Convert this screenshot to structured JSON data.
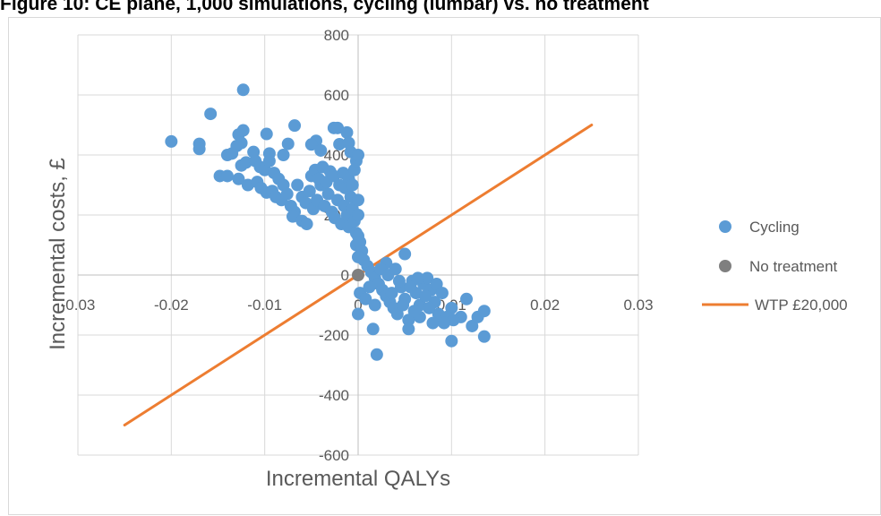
{
  "figure_title": "Figure 10: CE plane, 1,000 simulations, cycling (lumbar) vs.  no treatment",
  "chart_data": {
    "type": "scatter",
    "title": "",
    "xlabel": "Incremental QALYs",
    "ylabel": "Incremental costs, £",
    "xlim": [
      -0.03,
      0.03
    ],
    "ylim": [
      -600,
      800
    ],
    "x_ticks": [
      "-0.03",
      "-0.02",
      "-0.01",
      "0",
      "0.01",
      "0.02",
      "0.03"
    ],
    "y_ticks": [
      "-600",
      "-400",
      "-200",
      "0",
      "200",
      "400",
      "600",
      "800"
    ],
    "grid": "vertical and horizontal major gridlines",
    "legend_position": "right",
    "colors": {
      "cycling": "#5b9bd5",
      "no_treatment": "#7f7f7f",
      "wtp": "#ed7d31",
      "grid": "#d9d9d9"
    },
    "series": [
      {
        "name": "Cycling",
        "type": "scatter",
        "points": [
          [
            -0.0123,
            617
          ],
          [
            -0.0158,
            537
          ],
          [
            -0.0068,
            498
          ],
          [
            -0.0026,
            490
          ],
          [
            -0.0022,
            490
          ],
          [
            -0.0012,
            475
          ],
          [
            -0.0123,
            482
          ],
          [
            -0.0128,
            468
          ],
          [
            -0.0098,
            470
          ],
          [
            -0.02,
            445
          ],
          [
            -0.017,
            437
          ],
          [
            -0.017,
            420
          ],
          [
            -0.0125,
            440
          ],
          [
            -0.013,
            430
          ],
          [
            -0.0075,
            437
          ],
          [
            -0.0045,
            447
          ],
          [
            -0.005,
            435
          ],
          [
            -0.002,
            436
          ],
          [
            -0.001,
            440
          ],
          [
            -0.0008,
            410
          ],
          [
            -0.004,
            415
          ],
          [
            -0.014,
            400
          ],
          [
            -0.0135,
            405
          ],
          [
            -0.0112,
            410
          ],
          [
            -0.0095,
            405
          ],
          [
            -0.008,
            400
          ],
          [
            -0.0148,
            330
          ],
          [
            -0.014,
            330
          ],
          [
            -0.0125,
            365
          ],
          [
            -0.012,
            375
          ],
          [
            -0.0128,
            320
          ],
          [
            -0.0118,
            300
          ],
          [
            -0.011,
            380
          ],
          [
            -0.0105,
            360
          ],
          [
            -0.01,
            350
          ],
          [
            -0.0095,
            380
          ],
          [
            -0.009,
            340
          ],
          [
            -0.0085,
            320
          ],
          [
            -0.008,
            300
          ],
          [
            -0.0108,
            310
          ],
          [
            -0.0104,
            290
          ],
          [
            -0.0098,
            275
          ],
          [
            -0.0092,
            280
          ],
          [
            -0.0088,
            260
          ],
          [
            -0.0082,
            250
          ],
          [
            -0.0076,
            270
          ],
          [
            -0.0072,
            230
          ],
          [
            -0.0068,
            210
          ],
          [
            -0.0065,
            300
          ],
          [
            -0.006,
            260
          ],
          [
            -0.0056,
            240
          ],
          [
            -0.0052,
            280
          ],
          [
            -0.0048,
            220
          ],
          [
            -0.0044,
            250
          ],
          [
            -0.004,
            300
          ],
          [
            -0.0036,
            230
          ],
          [
            -0.0032,
            270
          ],
          [
            -0.0028,
            210
          ],
          [
            -0.0025,
            190
          ],
          [
            -0.0022,
            250
          ],
          [
            -0.0018,
            170
          ],
          [
            -0.0015,
            230
          ],
          [
            -0.0012,
            200
          ],
          [
            -0.001,
            160
          ],
          [
            -0.0008,
            260
          ],
          [
            -0.0006,
            220
          ],
          [
            -0.0004,
            180
          ],
          [
            -0.0002,
            140
          ],
          [
            0.0,
            250
          ],
          [
            0.0,
            200
          ],
          [
            -0.007,
            195
          ],
          [
            -0.006,
            180
          ],
          [
            -0.0055,
            170
          ],
          [
            -0.005,
            330
          ],
          [
            -0.0046,
            350
          ],
          [
            -0.0042,
            320
          ],
          [
            -0.0038,
            360
          ],
          [
            -0.0034,
            310
          ],
          [
            -0.003,
            345
          ],
          [
            -0.0026,
            330
          ],
          [
            -0.002,
            300
          ],
          [
            -0.0016,
            340
          ],
          [
            -0.0014,
            290
          ],
          [
            -0.001,
            320
          ],
          [
            -0.0006,
            300
          ],
          [
            -0.0004,
            350
          ],
          [
            -0.0002,
            380
          ],
          [
            0.0,
            400
          ],
          [
            -0.0002,
            100
          ],
          [
            0.0,
            130
          ],
          [
            0.0002,
            110
          ],
          [
            0.0004,
            80
          ],
          [
            0.0,
            60
          ],
          [
            0.0,
            -130
          ],
          [
            0.0002,
            -60
          ],
          [
            0.0006,
            50
          ],
          [
            0.001,
            30
          ],
          [
            0.0014,
            10
          ],
          [
            0.0018,
            -10
          ],
          [
            0.0022,
            -30
          ],
          [
            0.0026,
            -50
          ],
          [
            0.003,
            -70
          ],
          [
            0.0034,
            -90
          ],
          [
            0.0038,
            -110
          ],
          [
            0.0042,
            -130
          ],
          [
            0.0046,
            -40
          ],
          [
            0.005,
            -80
          ],
          [
            0.0054,
            -150
          ],
          [
            0.0058,
            -20
          ],
          [
            0.0062,
            -60
          ],
          [
            0.0066,
            -100
          ],
          [
            0.007,
            -30
          ],
          [
            0.0074,
            -10
          ],
          [
            0.0078,
            -50
          ],
          [
            0.0082,
            -90
          ],
          [
            0.0086,
            -130
          ],
          [
            0.008,
            -160
          ],
          [
            0.0016,
            -180
          ],
          [
            0.002,
            -265
          ],
          [
            0.0054,
            -180
          ],
          [
            0.011,
            -140
          ],
          [
            0.0116,
            -80
          ],
          [
            0.0122,
            -170
          ],
          [
            0.0128,
            -140
          ],
          [
            0.0135,
            -120
          ],
          [
            0.0135,
            -205
          ],
          [
            0.01,
            -110
          ],
          [
            0.0095,
            -140
          ],
          [
            0.0102,
            -150
          ],
          [
            0.0092,
            -160
          ],
          [
            0.01,
            -220
          ],
          [
            0.005,
            70
          ],
          [
            0.003,
            40
          ],
          [
            0.0024,
            20
          ],
          [
            0.0012,
            -40
          ],
          [
            0.0008,
            -80
          ],
          [
            0.0018,
            -100
          ],
          [
            0.0032,
            0
          ],
          [
            0.004,
            20
          ],
          [
            0.0044,
            -20
          ],
          [
            0.0036,
            -60
          ],
          [
            0.0048,
            -100
          ],
          [
            0.0056,
            -40
          ],
          [
            0.0064,
            -10
          ],
          [
            0.0072,
            -70
          ],
          [
            0.0076,
            -110
          ],
          [
            0.0084,
            -30
          ],
          [
            0.009,
            -60
          ],
          [
            0.0066,
            -140
          ],
          [
            0.006,
            -120
          ]
        ]
      },
      {
        "name": "No treatment",
        "type": "scatter",
        "points": [
          [
            0,
            0
          ]
        ]
      },
      {
        "name": "WTP £20,000",
        "type": "line",
        "points": [
          [
            -0.025,
            -500
          ],
          [
            0.025,
            500
          ]
        ]
      }
    ]
  }
}
